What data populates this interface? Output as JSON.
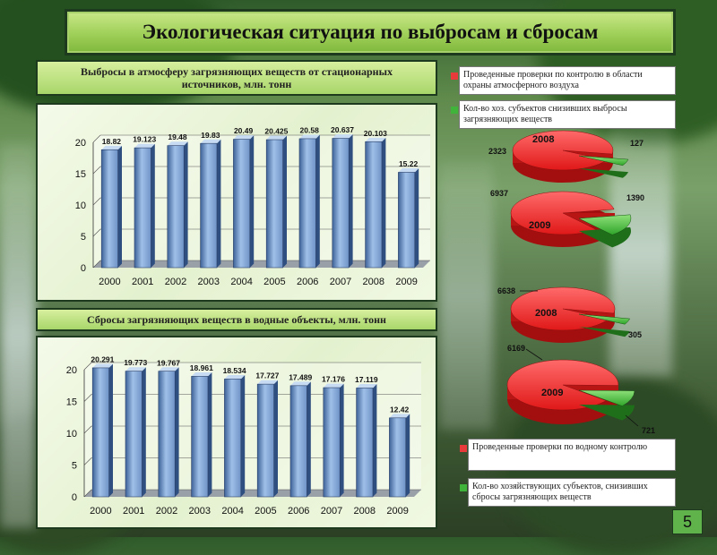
{
  "title": "Экологическая ситуация  по выбросам и сбросам",
  "page_number": "5",
  "air": {
    "header": "Выбросы в атмосферу загрязняющих веществ от стационарных источников, млн. тонн"
  },
  "water": {
    "header": "Сбросы  загрязняющих веществ в водные объекты, млн. тонн"
  },
  "pies": {
    "air_legend_red": "Проведенные  проверки  по  контролю  в  области охраны атмосферного воздуха",
    "air_legend_green": "Кол-во хоз. субъектов снизивших выбросы загрязняющих веществ",
    "water_legend_red": "Проведенные проверки по водному контролю",
    "water_legend_green": "Кол-во хозяйствующих субъектов, снизивших сбросы загрязняющих веществ",
    "air_2008_red": "2323",
    "air_2008_green": "127",
    "air_2009_red": "6937",
    "air_2009_green": "1390",
    "water_2008_red": "6638",
    "water_2008_green": "305",
    "water_2009_red": "6169",
    "water_2009_green": "721",
    "year_2008": "2008",
    "year_2009": "2009"
  },
  "colors": {
    "bar": "#9fc0e8",
    "bar_dark": "#3d6298",
    "pie_red": "#e83a3a",
    "pie_green": "#3fb33a"
  },
  "chart_data": [
    {
      "type": "bar",
      "title": "Выбросы в атмосферу загрязняющих веществ от стационарных источников, млн. тонн",
      "categories": [
        "2000",
        "2001",
        "2002",
        "2003",
        "2004",
        "2005",
        "2006",
        "2007",
        "2008",
        "2009"
      ],
      "values": [
        18.82,
        19.123,
        19.48,
        19.83,
        20.49,
        20.425,
        20.58,
        20.637,
        20.103,
        15.22
      ],
      "labels": [
        "18.82",
        "19.123",
        "19.48",
        "19.83",
        "20.49",
        "20.425",
        "20.58",
        "20.637",
        "20.103",
        "15.22"
      ],
      "yticks": [
        "0",
        "5",
        "10",
        "15",
        "20"
      ],
      "ylim": [
        0,
        20
      ],
      "grid": true
    },
    {
      "type": "bar",
      "title": "Сбросы  загрязняющих веществ в водные объекты, млн. тонн",
      "categories": [
        "2000",
        "2001",
        "2002",
        "2003",
        "2004",
        "2005",
        "2006",
        "2007",
        "2008",
        "2009"
      ],
      "values": [
        20.291,
        19.773,
        19.767,
        18.961,
        18.534,
        17.727,
        17.489,
        17.176,
        17.119,
        12.42
      ],
      "labels": [
        "20.291",
        "19.773",
        "19.767",
        "18.961",
        "18.534",
        "17.727",
        "17.489",
        "17.176",
        "17.119",
        "12.42"
      ],
      "yticks": [
        "0",
        "5",
        "10",
        "15",
        "20"
      ],
      "ylim": [
        0,
        20
      ],
      "grid": true
    },
    {
      "type": "pie",
      "title": "2008",
      "categories": [
        "Проведенные  проверки  по  контролю  в  области охраны атмосферного воздуха",
        "Кол-во хоз. субъектов снизивших выбросы загрязняющих веществ"
      ],
      "values": [
        2323,
        127
      ]
    },
    {
      "type": "pie",
      "title": "2009",
      "categories": [
        "Проведенные  проверки  по  контролю  в  области охраны атмосферного воздуха",
        "Кол-во хоз. субъектов снизивших выбросы загрязняющих веществ"
      ],
      "values": [
        6937,
        1390
      ]
    },
    {
      "type": "pie",
      "title": "2008",
      "categories": [
        "Проведенные проверки по водному контролю",
        "Кол-во хозяйствующих субъектов, снизивших сбросы загрязняющих веществ"
      ],
      "values": [
        6638,
        305
      ]
    },
    {
      "type": "pie",
      "title": "2009",
      "categories": [
        "Проведенные проверки по водному контролю",
        "Кол-во хозяйствующих субъектов, снизивших сбросы загрязняющих веществ"
      ],
      "values": [
        6169,
        721
      ]
    }
  ]
}
